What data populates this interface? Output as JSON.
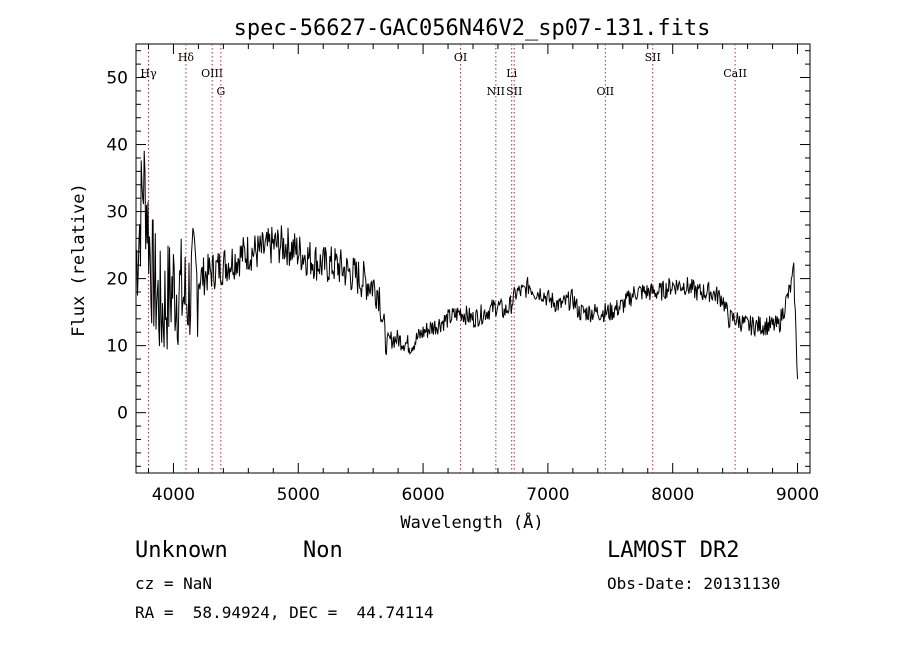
{
  "chart_data": {
    "type": "line",
    "title": "spec-56627-GAC056N46V2_sp07-131.fits",
    "xlabel": "Wavelength (Å)",
    "ylabel": "Flux (relative)",
    "xlim": [
      3700,
      9100
    ],
    "ylim": [
      -9,
      55
    ],
    "xticks": [
      4000,
      5000,
      6000,
      7000,
      8000,
      9000
    ],
    "yticks": [
      0,
      10,
      20,
      30,
      40,
      50
    ],
    "grid": false,
    "series": [
      {
        "x": [
          3700,
          3730,
          3760,
          3790,
          3820,
          3860,
          3900,
          3950,
          4000,
          4050,
          4100,
          4150,
          4200,
          4300,
          4400,
          4500,
          4600,
          4700,
          4800,
          4900,
          5000,
          5100,
          5200,
          5300,
          5400,
          5500,
          5600,
          5650,
          5700,
          5750,
          5800,
          5900,
          6000,
          6100,
          6200,
          6300,
          6400,
          6500,
          6600,
          6650,
          6700,
          6750,
          6800,
          6850,
          6900,
          6950,
          7000,
          7100,
          7200,
          7250,
          7300,
          7400,
          7500,
          7600,
          7700,
          7800,
          7900,
          8000,
          8100,
          8200,
          8300,
          8400,
          8450,
          8500,
          8600,
          8700,
          8800,
          8850,
          8900,
          8950,
          8970,
          9000
        ],
        "y": [
          22,
          28,
          35,
          30,
          22,
          18,
          15,
          17,
          19,
          18,
          17,
          19,
          20,
          21,
          22,
          23,
          24,
          24,
          25,
          25,
          24,
          23,
          22,
          22,
          21,
          20,
          19,
          18,
          10,
          11,
          11,
          10,
          12,
          13,
          14,
          15,
          14,
          15,
          16,
          15,
          16,
          18,
          18,
          19,
          18,
          18,
          17,
          16,
          17,
          15,
          15,
          15,
          15,
          16,
          18,
          18,
          18,
          19,
          19,
          18,
          18,
          17,
          14,
          14,
          13,
          13,
          13,
          13,
          16,
          19,
          21,
          5
        ]
      }
    ],
    "lines": [
      {
        "label": "Hγ",
        "x": 3800,
        "row": 2
      },
      {
        "label": "Hδ",
        "x": 4100,
        "row": 1
      },
      {
        "label": "OIII",
        "x": 4310,
        "row": 2
      },
      {
        "label": "G",
        "x": 4380,
        "row": 3
      },
      {
        "label": "OI",
        "x": 6300,
        "row": 1
      },
      {
        "label": "NII",
        "x": 6583,
        "row": 3
      },
      {
        "label": "Li",
        "x": 6710,
        "row": 2
      },
      {
        "label": "SII",
        "x": 6730,
        "row": 3
      },
      {
        "label": "OII",
        "x": 7460,
        "row": 3
      },
      {
        "label": "SII",
        "x": 7840,
        "row": 1
      },
      {
        "label": "CaII",
        "x": 8500,
        "row": 2
      }
    ]
  },
  "info": {
    "object_class": "Unknown",
    "subclass": "Non",
    "survey": "LAMOST DR2",
    "cz": "cz = NaN",
    "obs_date": "Obs-Date: 20131130",
    "coords": "RA =  58.94924, DEC =  44.74114"
  }
}
